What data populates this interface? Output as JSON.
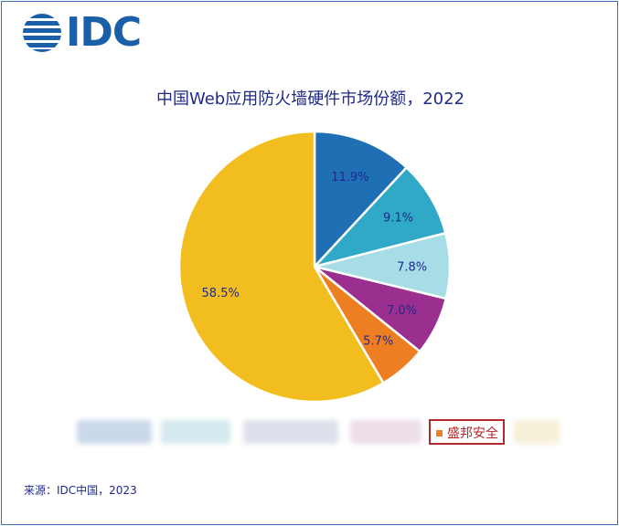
{
  "logo": {
    "text": "IDC",
    "color": "#1b5fa8"
  },
  "chart_data": {
    "type": "pie",
    "title": "中国Web应用防火墙硬件市场份额，2022",
    "slices": [
      {
        "value": 11.9,
        "label": "11.9%",
        "color": "#1f6fb4"
      },
      {
        "value": 9.1,
        "label": "9.1%",
        "color": "#30a8c7"
      },
      {
        "value": 7.8,
        "label": "7.8%",
        "color": "#a7dde6"
      },
      {
        "value": 7.0,
        "label": "7.0%",
        "color": "#9b2f8f"
      },
      {
        "value": 5.7,
        "label": "5.7%",
        "color": "#ee7e22"
      },
      {
        "value": 58.5,
        "label": "58.5%",
        "color": "#f2be1f"
      }
    ],
    "legend": {
      "placement": "bottom",
      "visible_entry": {
        "label": "盛邦安全",
        "color": "#ee7e22",
        "highlighted": true
      }
    }
  },
  "source": "来源：IDC中国，2023"
}
